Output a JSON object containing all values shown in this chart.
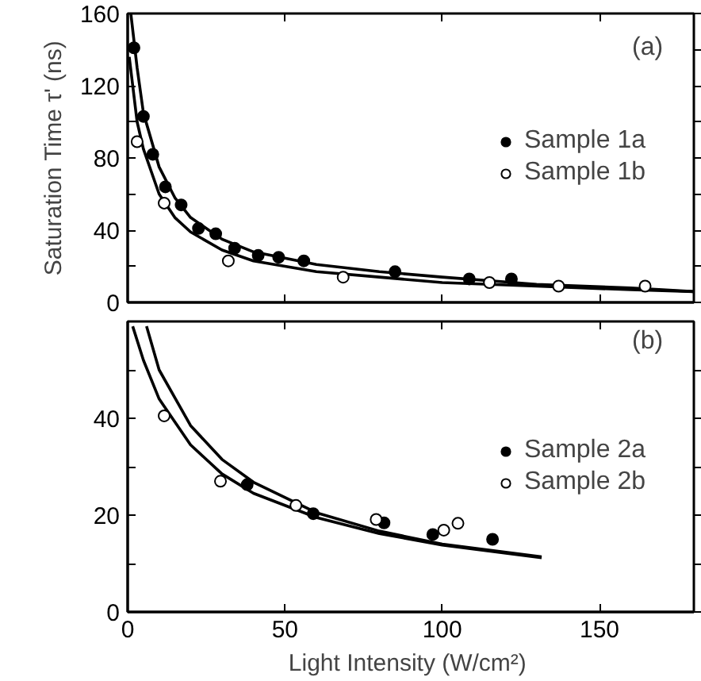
{
  "chart_data": [
    {
      "type": "scatter",
      "ylabel": "Saturation Time τ' (ns)",
      "xlim": [
        0,
        180
      ],
      "xticks": [
        0,
        50,
        100,
        150
      ],
      "ylim": [
        0,
        160
      ],
      "yticks": [
        0,
        {
          "value": 20,
          "label": null
        },
        40,
        {
          "value": 60,
          "label": null
        },
        80,
        {
          "value": 100,
          "label": null
        },
        120,
        {
          "value": 140,
          "label": null
        },
        160
      ],
      "tick_labels": "y",
      "grid": false,
      "legend": "right",
      "annotations": [
        "(a)"
      ],
      "series": [
        {
          "type": "line",
          "color": "#000000",
          "x": [
            1,
            3,
            5,
            10,
            15,
            20,
            30,
            40,
            60,
            80,
            100,
            130,
            160,
            180
          ],
          "values": [
            160,
            130,
            105,
            75,
            58,
            47,
            35,
            28,
            21,
            17,
            14,
            10,
            8,
            6
          ]
        },
        {
          "type": "line",
          "color": "#000000",
          "x": [
            0.5,
            3,
            5,
            10,
            15,
            20,
            30,
            40,
            60,
            80,
            100,
            130,
            160,
            180
          ],
          "values": [
            136,
            100,
            85,
            60,
            47,
            39,
            29,
            23,
            17,
            14,
            11,
            9,
            7,
            6
          ]
        },
        {
          "name": "Sample 1a",
          "color": "#000000",
          "marker": "circle",
          "x": [
            2,
            5,
            8,
            12,
            17,
            22.5,
            28,
            34,
            41.5,
            48,
            56,
            85,
            108.6,
            122
          ],
          "values": [
            141,
            103,
            82,
            64,
            54,
            41,
            38,
            30,
            26,
            25,
            23,
            17,
            13,
            13
          ]
        },
        {
          "name": "Sample 1b",
          "color": "#ffffff",
          "marker": "circle",
          "x": [
            3,
            11.6,
            32,
            68.5,
            115,
            137,
            164.5
          ],
          "values": [
            89,
            55,
            23,
            14,
            11,
            9,
            9
          ]
        }
      ]
    },
    {
      "type": "scatter",
      "xlabel": "Light Intensity  (W/cm²)",
      "xlim": [
        0,
        180
      ],
      "xticks": [
        0,
        50,
        100,
        150
      ],
      "ylim": [
        0,
        60
      ],
      "yticks": [
        0,
        {
          "value": 10,
          "label": null
        },
        20,
        {
          "value": 30,
          "label": null
        },
        40,
        {
          "value": 50,
          "label": null
        }
      ],
      "grid": false,
      "legend": "right",
      "annotations": [
        "(b)"
      ],
      "series": [
        {
          "type": "line",
          "color": "#000000",
          "x": [
            6,
            10,
            20,
            30,
            40,
            60,
            80,
            100,
            131.6
          ],
          "values": [
            59,
            50,
            38.5,
            31.5,
            26.8,
            20.5,
            16.7,
            14,
            11.4
          ]
        },
        {
          "type": "line",
          "color": "#000000",
          "x": [
            1.6,
            5,
            10,
            20,
            30,
            40,
            60,
            80,
            100,
            131.6
          ],
          "values": [
            59,
            52,
            44,
            34.5,
            28.5,
            24.5,
            19.5,
            16.2,
            13.8,
            11.2
          ]
        },
        {
          "name": "Sample 2a",
          "color": "#000000",
          "marker": "circle",
          "x": [
            38,
            59,
            81.5,
            97,
            116
          ],
          "values": [
            26.3,
            20.3,
            18.4,
            16,
            15
          ]
        },
        {
          "name": "Sample 2b",
          "color": "#ffffff",
          "marker": "circle",
          "x": [
            11.6,
            29.5,
            53.5,
            79,
            100.5,
            105
          ],
          "values": [
            40.5,
            27,
            22,
            19.1,
            16.9,
            18.3
          ]
        }
      ]
    }
  ]
}
